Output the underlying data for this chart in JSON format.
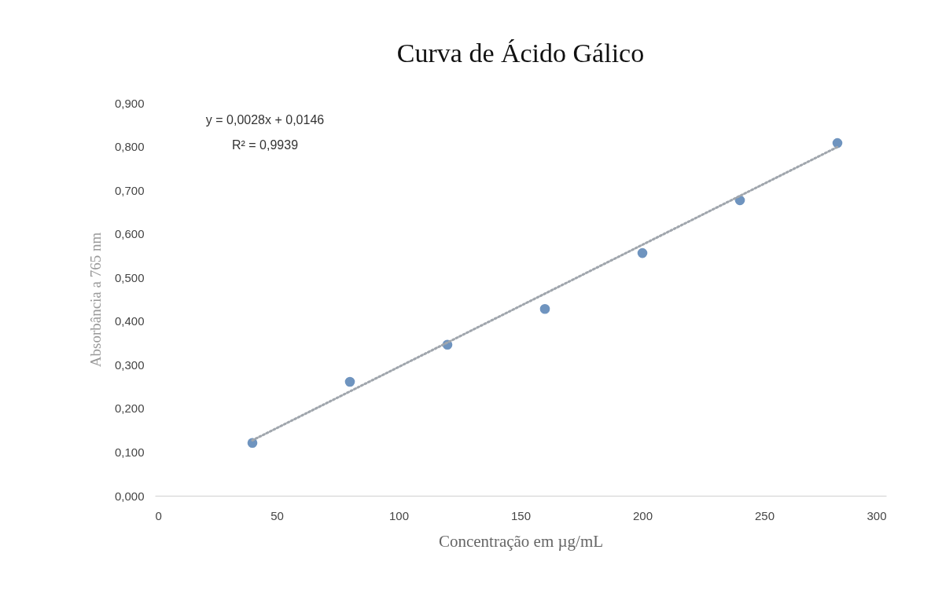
{
  "chart_data": {
    "type": "scatter",
    "title": "Curva de  Ácido Gálico",
    "xlabel": "Concentração em µg/mL",
    "ylabel": "Absorbância a 765 nm",
    "series": [
      {
        "type": "scatter",
        "color": "#6f94bf",
        "marker": "circle",
        "x": [
          40,
          80,
          120,
          160,
          200,
          240,
          280
        ],
        "values": [
          0.121,
          0.261,
          0.346,
          0.428,
          0.556,
          0.677,
          0.808
        ]
      },
      {
        "type": "line",
        "color": "#a0a6ad",
        "line_style": "dotted",
        "x": [
          40,
          280
        ],
        "values": [
          0.127,
          0.799
        ]
      }
    ],
    "xlim": [
      0,
      300
    ],
    "xticks": [
      0,
      50,
      100,
      150,
      200,
      250,
      300
    ],
    "ylim": [
      0,
      0.9
    ],
    "yticks": [
      {
        "value": 0,
        "label": "0,000"
      },
      {
        "value": 0.1,
        "label": "0,100"
      },
      {
        "value": 0.2,
        "label": "0,200"
      },
      {
        "value": 0.3,
        "label": "0,300"
      },
      {
        "value": 0.4,
        "label": "0,400"
      },
      {
        "value": 0.5,
        "label": "0,500"
      },
      {
        "value": 0.6,
        "label": "0,600"
      },
      {
        "value": 0.7,
        "label": "0,700"
      },
      {
        "value": 0.8,
        "label": "0,800"
      },
      {
        "value": 0.9,
        "label": "0,900"
      }
    ],
    "annotations": [
      "y = 0,0028x + 0,0146",
      "R² = 0,9939"
    ],
    "grid": false
  }
}
